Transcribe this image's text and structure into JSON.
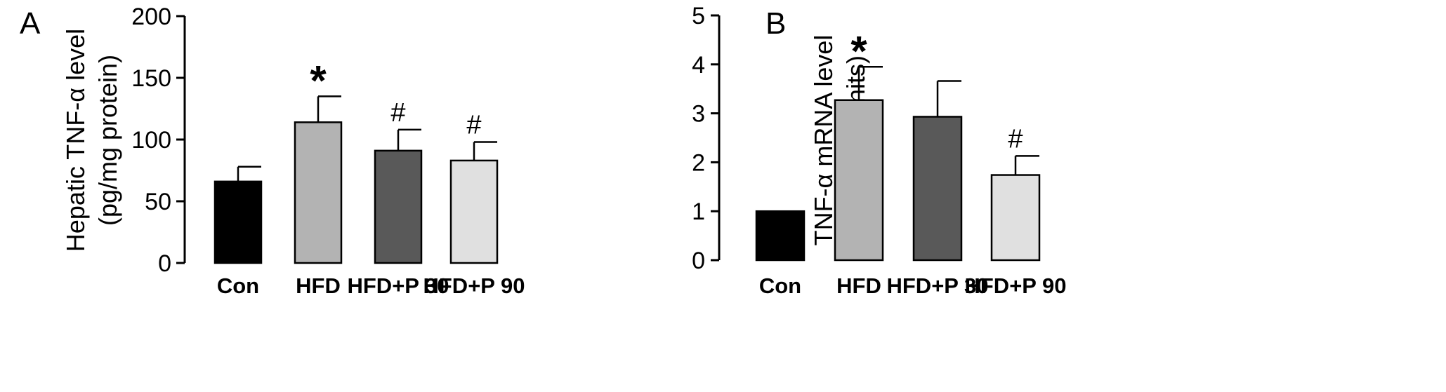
{
  "chart_data": [
    {
      "panel": "A",
      "type": "bar",
      "categories": [
        "Con",
        "HFD",
        "HFD+P 30",
        "HFD+P 90"
      ],
      "values": [
        66,
        114,
        91,
        83
      ],
      "errors": [
        12,
        21,
        17,
        15
      ],
      "significance": [
        "",
        "*",
        "#",
        "#"
      ],
      "colors": [
        "#000000",
        "#b3b3b3",
        "#595959",
        "#e0e0e0"
      ],
      "ylabel_line1": "Hepatic TNF-α level",
      "ylabel_line2": "(pg/mg protein)",
      "ylim": [
        0,
        200
      ],
      "yticks": [
        0,
        50,
        100,
        150,
        200
      ],
      "grid": false
    },
    {
      "panel": "B",
      "type": "bar",
      "categories": [
        "Con",
        "HFD",
        "HFD+P 30",
        "HFD+P 90"
      ],
      "values": [
        1.0,
        3.27,
        2.93,
        1.74
      ],
      "errors": [
        0,
        0.68,
        0.73,
        0.39
      ],
      "significance": [
        "",
        "*",
        "",
        "#"
      ],
      "colors": [
        "#000000",
        "#b3b3b3",
        "#595959",
        "#e0e0e0"
      ],
      "ylabel_line1": "TNF-α mRNA level",
      "ylabel_line2": "(arbitrary units)",
      "ylim": [
        0,
        5
      ],
      "yticks": [
        0,
        1,
        2,
        3,
        4,
        5
      ],
      "grid": false
    }
  ]
}
